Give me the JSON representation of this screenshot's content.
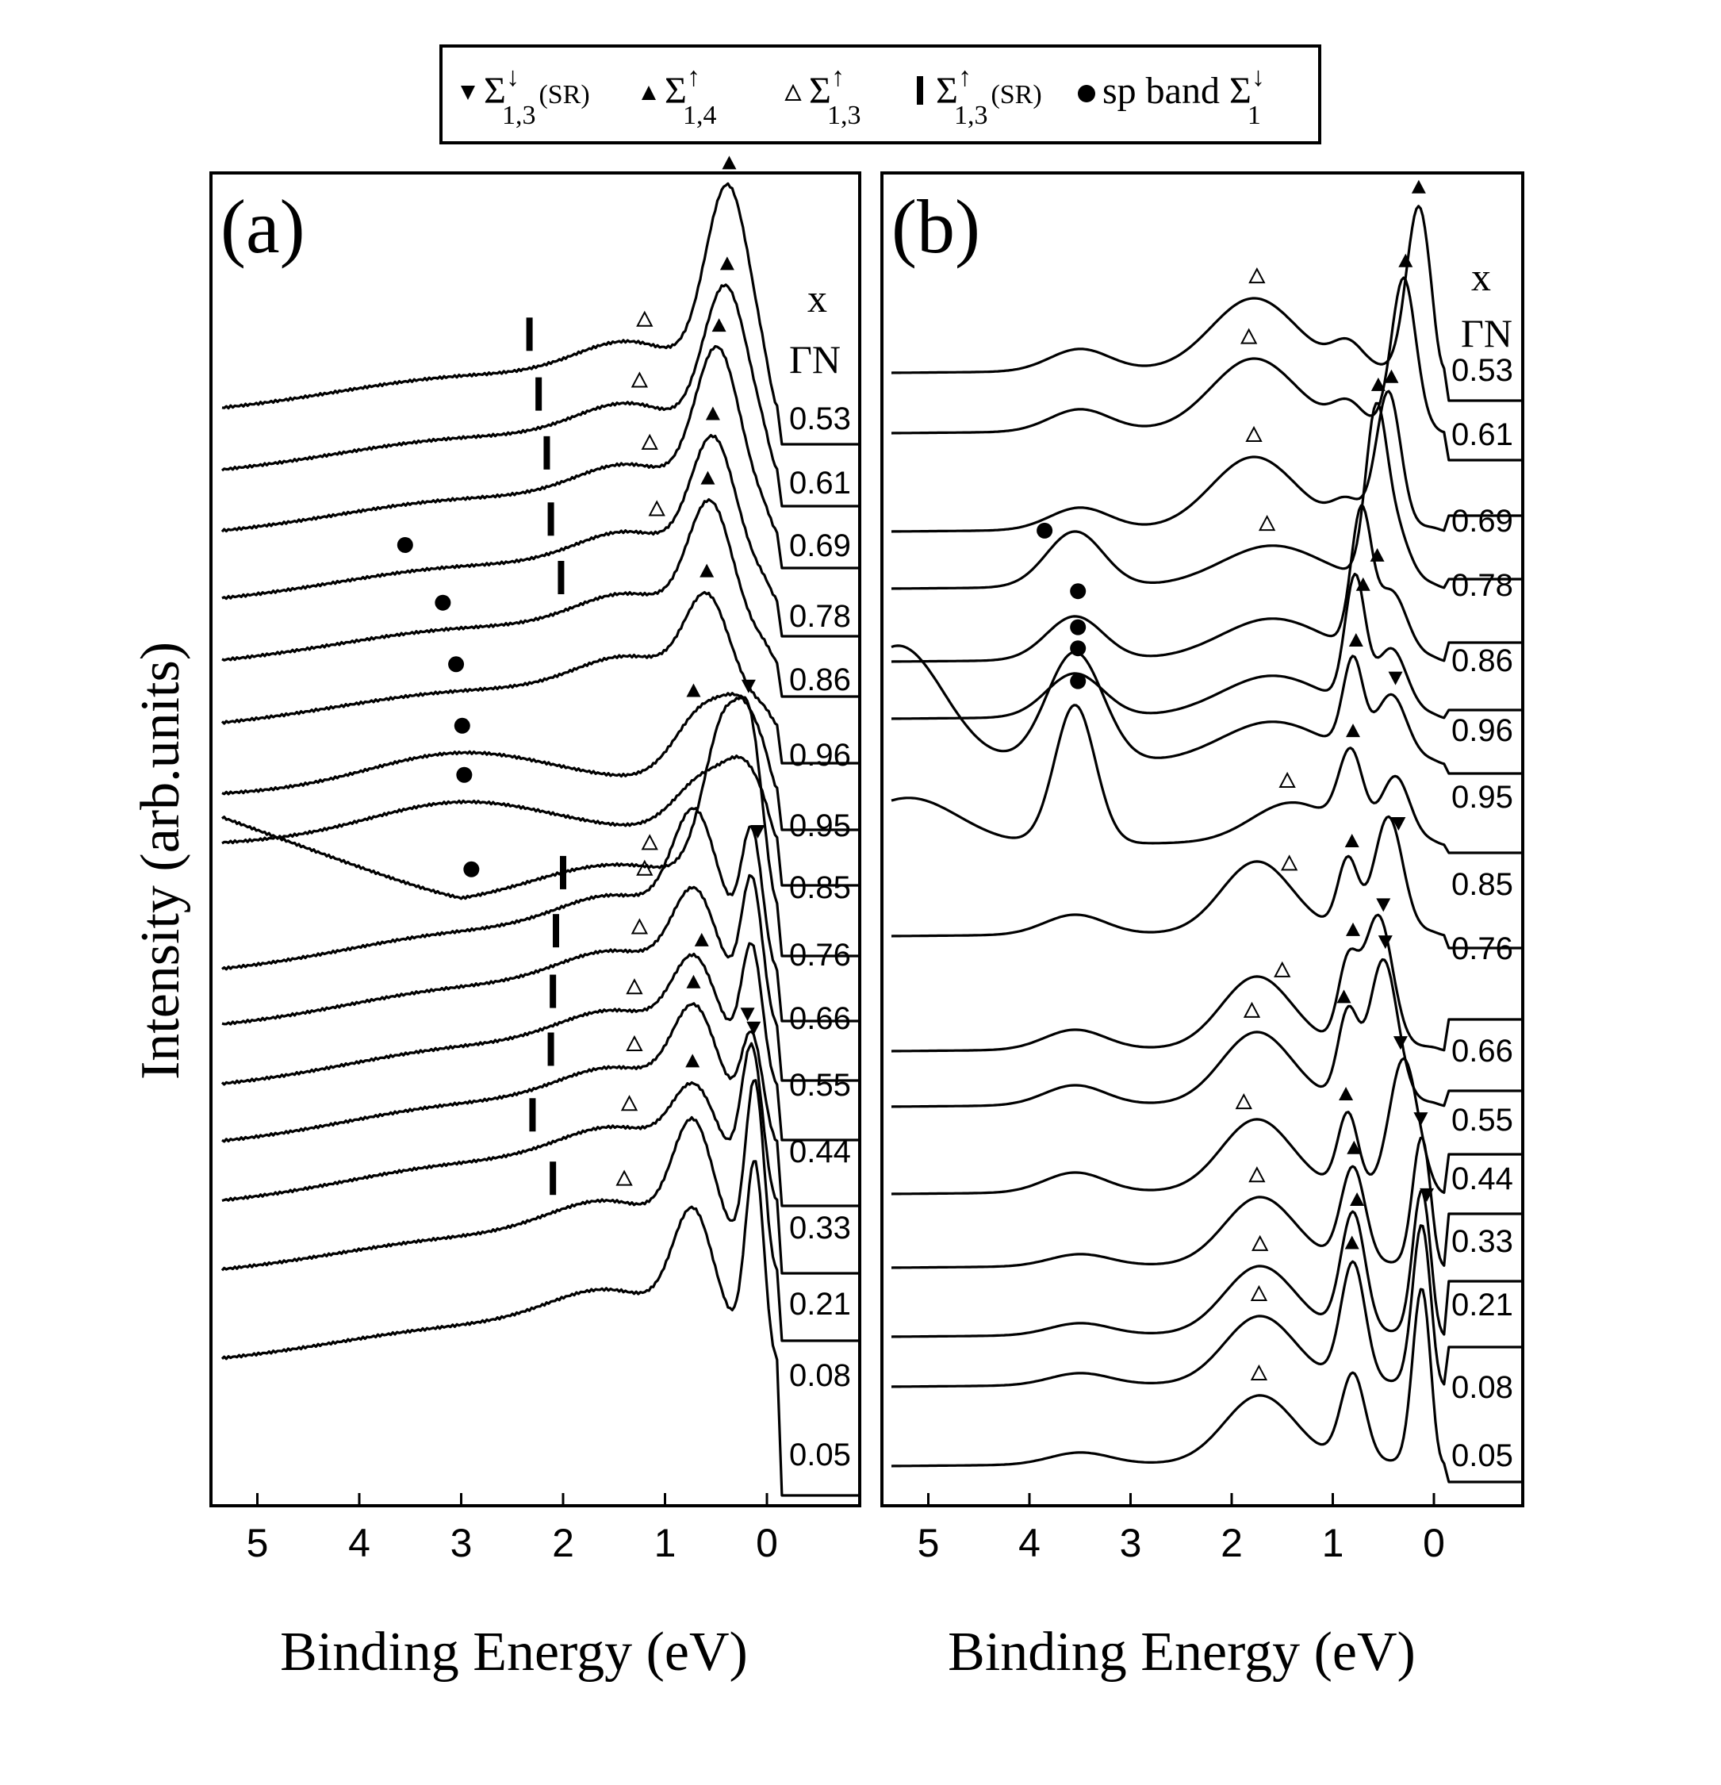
{
  "chart_data": {
    "type": "line",
    "ylabel": "Intensity (arb.units)",
    "legend": {
      "placement": "top-center",
      "entries": [
        {
          "marker": "filled-triangle-down",
          "symbol": "Σ",
          "sup": "↓",
          "sub": "1,3",
          "tag": "(SR)"
        },
        {
          "marker": "filled-triangle-up",
          "symbol": "Σ",
          "sup": "↑",
          "sub": "1,4",
          "tag": ""
        },
        {
          "marker": "open-triangle-up",
          "symbol": "Σ",
          "sup": "↑",
          "sub": "1,3",
          "tag": ""
        },
        {
          "marker": "vertical-bar",
          "symbol": "Σ",
          "sup": "↑",
          "sub": "1,3",
          "tag": "(SR)"
        },
        {
          "marker": "filled-circle",
          "symbol": "sp band Σ",
          "sup": "↓",
          "sub": "1",
          "tag": ""
        }
      ]
    },
    "panels": [
      {
        "label": "(a)",
        "xlabel": "Binding Energy (eV)",
        "xlim": [
          5.5,
          -0.9
        ],
        "xticks": [
          5,
          4,
          3,
          2,
          1,
          0
        ],
        "header": [
          "x",
          "ΓN"
        ],
        "curve_labels": [
          "0.53",
          "0.61",
          "0.69",
          "0.78",
          "0.86",
          "0.96",
          "0.95",
          "0.85",
          "0.76",
          "0.66",
          "0.55",
          "0.44",
          "0.33",
          "0.21",
          "0.08",
          "0.05"
        ],
        "markers": {
          "filled_triangle_up": [
            0.37,
            0.39,
            0.47,
            0.53,
            0.58,
            0.59,
            0.72,
            0.64,
            0.72,
            0.73
          ],
          "filled_triangle_down": [
            0.18,
            0.09,
            0.19,
            0.13
          ],
          "open_triangle_up": [
            1.2,
            1.25,
            1.15,
            1.08,
            1.15,
            1.2,
            1.25,
            1.3,
            1.3,
            1.35,
            1.4
          ],
          "vertical_bar": [
            2.33,
            2.24,
            2.16,
            2.12,
            2.02,
            2.0,
            2.07,
            2.1,
            2.12,
            2.3,
            2.1
          ],
          "filled_circle": [
            3.55,
            3.18,
            3.05,
            2.99,
            2.97,
            2.9
          ]
        }
      },
      {
        "label": "(b)",
        "xlabel": "Binding Energy (eV)",
        "xlim": [
          5.4,
          -0.7
        ],
        "xticks": [
          5,
          4,
          3,
          2,
          1,
          0
        ],
        "header": [
          "x",
          "ΓN"
        ],
        "curve_labels": [
          "0.53",
          "0.61",
          "0.69",
          "0.78",
          "0.86",
          "0.96",
          "0.95",
          "0.85",
          "0.76",
          "0.66",
          "0.55",
          "0.44",
          "0.33",
          "0.21",
          "0.08",
          "0.05"
        ],
        "markers": {
          "filled_triangle_up": [
            0.15,
            0.28,
            0.42,
            0.55,
            0.56,
            0.7,
            0.77,
            0.8,
            0.81,
            0.8,
            0.89,
            0.87,
            0.79,
            0.76,
            0.81
          ],
          "filled_triangle_down": [
            0.38,
            0.35,
            0.5,
            0.48,
            0.33,
            0.13,
            0.07
          ],
          "open_triangle_up": [
            1.75,
            1.83,
            1.78,
            1.65,
            1.45,
            1.43,
            1.5,
            1.8,
            1.88,
            1.75,
            1.72,
            1.73,
            1.73
          ],
          "filled_circle": [
            3.85,
            3.52,
            3.52,
            3.52,
            3.52
          ]
        }
      }
    ]
  }
}
